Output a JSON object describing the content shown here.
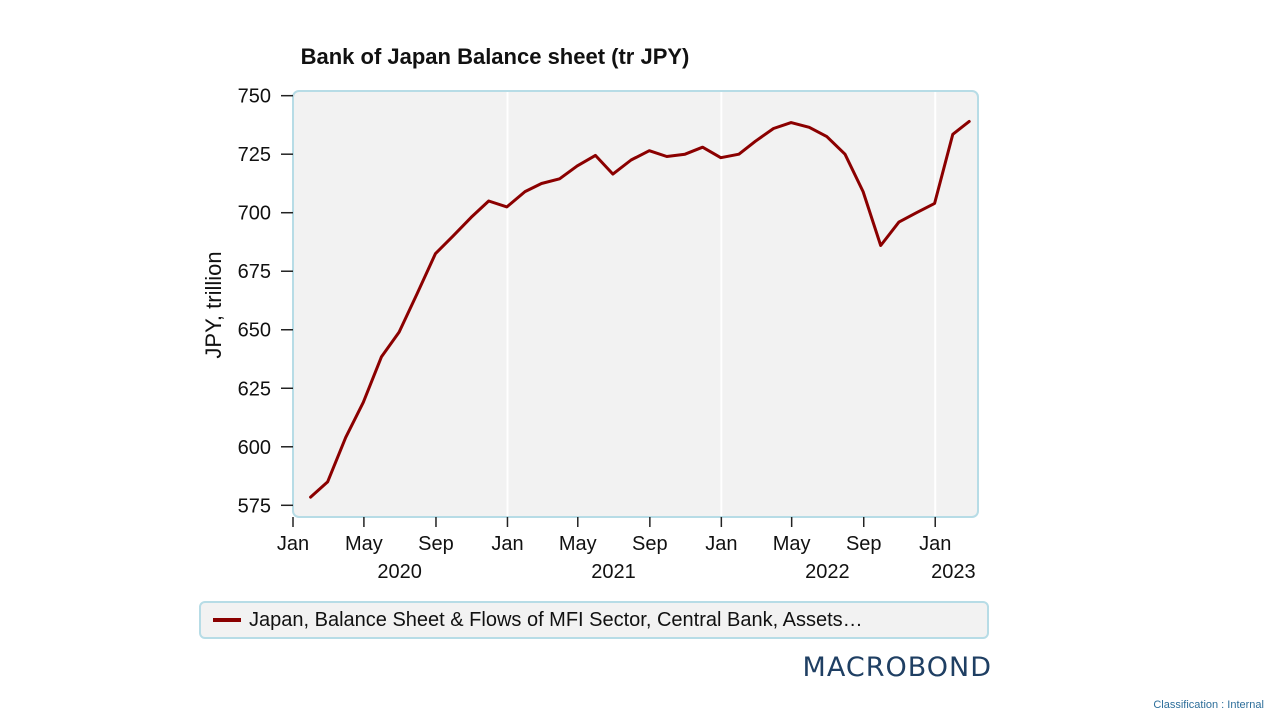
{
  "chart_data": {
    "type": "line",
    "title": "Bank of Japan Balance sheet (tr JPY)",
    "ylabel": "JPY, trillion",
    "xlabel": "",
    "ylim": [
      570,
      752
    ],
    "yticks": [
      575,
      600,
      625,
      650,
      675,
      700,
      725,
      750
    ],
    "xlim": [
      "2020-01-01",
      "2023-03-15"
    ],
    "xticks": [
      {
        "date": "2020-01-01",
        "label": "Jan"
      },
      {
        "date": "2020-05-01",
        "label": "May"
      },
      {
        "date": "2020-09-01",
        "label": "Sep"
      },
      {
        "date": "2021-01-01",
        "label": "Jan"
      },
      {
        "date": "2021-05-01",
        "label": "May"
      },
      {
        "date": "2021-09-01",
        "label": "Sep"
      },
      {
        "date": "2022-01-01",
        "label": "Jan"
      },
      {
        "date": "2022-05-01",
        "label": "May"
      },
      {
        "date": "2022-09-01",
        "label": "Sep"
      },
      {
        "date": "2023-01-01",
        "label": "Jan"
      }
    ],
    "year_labels": [
      {
        "date": "2020-07-01",
        "label": "2020"
      },
      {
        "date": "2021-07-01",
        "label": "2021"
      },
      {
        "date": "2022-07-01",
        "label": "2022"
      },
      {
        "date": "2023-02-01",
        "label": "2023"
      }
    ],
    "year_gridlines": [
      "2021-01-01",
      "2022-01-01",
      "2023-01-01"
    ],
    "grid": "vertical at year boundaries",
    "legend_position": "bottom",
    "series": [
      {
        "name": "Japan, Balance Sheet & Flows of MFI Sector, Central Bank, Assets…",
        "color": "#8b0000",
        "x": [
          "2020-01-31",
          "2020-02-29",
          "2020-03-31",
          "2020-04-30",
          "2020-05-31",
          "2020-06-30",
          "2020-07-31",
          "2020-08-31",
          "2020-09-30",
          "2020-10-31",
          "2020-11-30",
          "2020-12-31",
          "2021-01-31",
          "2021-02-28",
          "2021-03-31",
          "2021-04-30",
          "2021-05-31",
          "2021-06-30",
          "2021-07-31",
          "2021-08-31",
          "2021-09-30",
          "2021-10-31",
          "2021-11-30",
          "2021-12-31",
          "2022-01-31",
          "2022-02-28",
          "2022-03-31",
          "2022-04-30",
          "2022-05-31",
          "2022-06-30",
          "2022-07-31",
          "2022-08-31",
          "2022-09-30",
          "2022-10-31",
          "2022-11-30",
          "2022-12-31",
          "2023-01-31",
          "2023-02-28"
        ],
        "values": [
          578.5,
          585,
          604,
          619,
          638.5,
          649,
          665.5,
          682.5,
          690,
          698,
          705,
          702.5,
          709,
          712.5,
          714.5,
          720,
          724.5,
          716.5,
          722.5,
          726.5,
          724,
          725,
          728,
          723.5,
          725,
          730.5,
          736,
          738.5,
          736.5,
          732.5,
          725,
          709,
          686,
          696,
          700,
          704,
          733.5,
          739
        ]
      }
    ]
  },
  "brand": "MACROBOND",
  "classification": "Classification : Internal"
}
